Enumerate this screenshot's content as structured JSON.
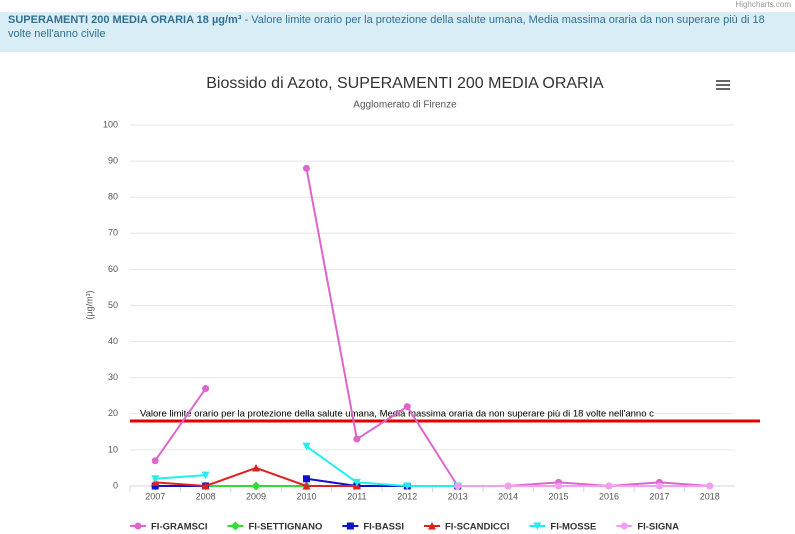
{
  "banner": {
    "strong": "SUPERAMENTI 200 MEDIA ORARIA 18 µg/m³",
    "text": " - Valore limite orario per la protezione della salute umana, Media massima oraria da non superare più di 18 volte nell'anno civile"
  },
  "credit": "Highcharts.com",
  "chart_data": {
    "type": "line",
    "title": "Biossido di Azoto, SUPERAMENTI 200 MEDIA ORARIA",
    "subtitle": "Agglomerato di Firenze",
    "y_label": "(µg/m³)",
    "categories": [
      "2007",
      "2008",
      "2009",
      "2010",
      "2011",
      "2012",
      "2013",
      "2014",
      "2015",
      "2016",
      "2017",
      "2018"
    ],
    "ylim": [
      0,
      100
    ],
    "yticks": [
      0,
      10,
      20,
      30,
      40,
      50,
      60,
      70,
      80,
      90,
      100
    ],
    "grid": true,
    "plot_lines": [
      {
        "value": 18,
        "color": "#e00000",
        "label": "Valore limite orario per la protezione della salute umana, Media massima oraria da non superare più di 18 volte nell'anno c"
      }
    ],
    "series": [
      {
        "name": "FI-GRAMSCI",
        "color": "#dd66cc",
        "marker": "circle",
        "values": [
          7,
          27,
          null,
          88,
          13,
          22,
          0,
          0,
          1,
          0,
          1,
          0
        ]
      },
      {
        "name": "FI-SETTIGNANO",
        "color": "#33dd33",
        "marker": "diamond",
        "values": [
          0,
          0,
          0,
          0,
          null,
          null,
          null,
          null,
          null,
          null,
          null,
          null
        ]
      },
      {
        "name": "FI-BASSI",
        "color": "#1111cc",
        "marker": "square",
        "values": [
          0,
          0,
          null,
          2,
          0,
          0,
          0,
          null,
          null,
          null,
          null,
          null
        ]
      },
      {
        "name": "FI-SCANDICCI",
        "color": "#dd2222",
        "marker": "triangle",
        "values": [
          1,
          0,
          5,
          0,
          0,
          null,
          null,
          null,
          null,
          null,
          null,
          null
        ]
      },
      {
        "name": "FI-MOSSE",
        "color": "#22eeee",
        "marker": "triangle-down",
        "values": [
          2,
          3,
          null,
          11,
          1,
          0,
          0,
          null,
          null,
          null,
          null,
          null
        ]
      },
      {
        "name": "FI-SIGNA",
        "color": "#f0a0f0",
        "marker": "circle",
        "values": [
          null,
          null,
          null,
          null,
          null,
          null,
          0,
          0,
          0,
          0,
          0,
          0
        ]
      }
    ]
  }
}
